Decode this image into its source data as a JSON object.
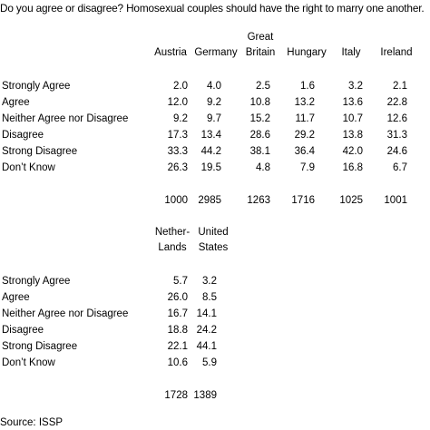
{
  "question": "Do you agree or disagree? Homosexual couples should have the right to marry one another.",
  "row_labels": [
    "Strongly Agree",
    "Agree",
    "Neither Agree nor Disagree",
    "Disagree",
    "Strong Disagree",
    "Don’t Know"
  ],
  "table1": {
    "headers": [
      {
        "line1": "",
        "line2": "Austria"
      },
      {
        "line1": "",
        "line2": "Germany"
      },
      {
        "line1": "Great",
        "line2": "Britain"
      },
      {
        "line1": "",
        "line2": "Hungary"
      },
      {
        "line1": "",
        "line2": "Italy"
      },
      {
        "line1": "",
        "line2": "Ireland"
      }
    ],
    "rows": [
      [
        "2.0",
        "4.0",
        "2.5",
        "1.6",
        "3.2",
        "2.1"
      ],
      [
        "12.0",
        "9.2",
        "10.8",
        "13.2",
        "13.6",
        "22.8"
      ],
      [
        "9.2",
        "9.7",
        "15.2",
        "11.7",
        "10.7",
        "12.6"
      ],
      [
        "17.3",
        "13.4",
        "28.6",
        "29.2",
        "13.8",
        "31.3"
      ],
      [
        "33.3",
        "44.2",
        "38.1",
        "36.4",
        "42.0",
        "24.6"
      ],
      [
        "26.3",
        "19.5",
        "4.8",
        "7.9",
        "16.8",
        "6.7"
      ]
    ],
    "totals": [
      "1000",
      "2985",
      "1263",
      "1716",
      "1025",
      "1001"
    ]
  },
  "table2": {
    "headers": [
      {
        "line1": "Nether-",
        "line2": "Lands"
      },
      {
        "line1": "United",
        "line2": "States"
      }
    ],
    "rows": [
      [
        "5.7",
        "3.2"
      ],
      [
        "26.0",
        "8.5"
      ],
      [
        "16.7",
        "14.1"
      ],
      [
        "18.8",
        "24.2"
      ],
      [
        "22.1",
        "44.1"
      ],
      [
        "10.6",
        "5.9"
      ]
    ],
    "totals": [
      "1728",
      "1389"
    ]
  },
  "source": "Source: ISSP"
}
